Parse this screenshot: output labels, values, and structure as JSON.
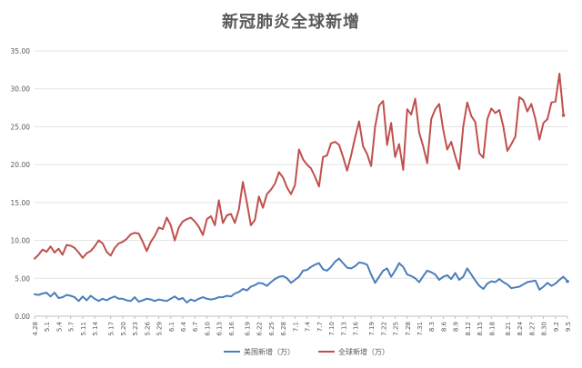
{
  "chart_data": {
    "type": "line",
    "title": "新冠肺炎全球新增",
    "xlabel": "",
    "ylabel": "",
    "ylim": [
      0,
      35
    ],
    "y_ticks": [
      "0.00",
      "5.00",
      "10.00",
      "15.00",
      "20.00",
      "25.00",
      "30.00",
      "35.00"
    ],
    "y_tick_values": [
      0,
      5,
      10,
      15,
      20,
      25,
      30,
      35
    ],
    "grid": true,
    "legend_position": "bottom",
    "x_tick_labels": [
      "4.28",
      "5.1",
      "5.4",
      "5.7",
      "5.11",
      "5.14",
      "5.17",
      "5.20",
      "5.23",
      "5.26",
      "5.29",
      "6.1",
      "6.4",
      "6.7",
      "6.10",
      "6.13",
      "6.16",
      "6.19",
      "6.22",
      "6.25",
      "6.28",
      "7.1",
      "7.4",
      "7.7",
      "7.10",
      "7.13",
      "7.16",
      "7.19",
      "7.22",
      "7.25",
      "7.28",
      "7.31",
      "8.3",
      "8.6",
      "8.9",
      "8.12",
      "8.15",
      "8.18",
      "8.21",
      "8.24",
      "8.27",
      "8.30",
      "9.2",
      "9.5"
    ],
    "series": [
      {
        "name": "美国新增（万）",
        "color": "#4A7EBB",
        "values": [
          2.9,
          2.8,
          3.0,
          3.1,
          2.6,
          3.1,
          2.4,
          2.5,
          2.8,
          2.7,
          2.5,
          2.0,
          2.6,
          2.1,
          2.7,
          2.3,
          2.0,
          2.3,
          2.1,
          2.4,
          2.6,
          2.3,
          2.3,
          2.1,
          2.0,
          2.5,
          1.9,
          2.1,
          2.3,
          2.2,
          2.0,
          2.2,
          2.1,
          2.0,
          2.3,
          2.6,
          2.2,
          2.4,
          1.8,
          2.2,
          2.0,
          2.3,
          2.5,
          2.3,
          2.2,
          2.3,
          2.5,
          2.5,
          2.7,
          2.6,
          3.0,
          3.2,
          3.6,
          3.4,
          3.9,
          4.1,
          4.4,
          4.3,
          4.0,
          4.5,
          4.9,
          5.2,
          5.3,
          5.0,
          4.4,
          4.8,
          5.2,
          6.0,
          6.1,
          6.5,
          6.8,
          7.0,
          6.2,
          6.0,
          6.5,
          7.2,
          7.6,
          7.0,
          6.4,
          6.3,
          6.6,
          7.1,
          7.0,
          6.8,
          5.5,
          4.4,
          5.2,
          6.0,
          6.3,
          5.2,
          6.0,
          7.0,
          6.5,
          5.5,
          5.3,
          5.0,
          4.5,
          5.3,
          6.0,
          5.8,
          5.5,
          4.8,
          5.2,
          5.4,
          4.9,
          5.7,
          4.8,
          5.2,
          6.3,
          5.5,
          4.7,
          4.0,
          3.6,
          4.3,
          4.6,
          4.5,
          4.9,
          4.5,
          4.2,
          3.7,
          3.8,
          3.9,
          4.2,
          4.5,
          4.6,
          4.7,
          3.5,
          3.9,
          4.4,
          4.0,
          4.3,
          4.8,
          5.2,
          4.6
        ],
        "end_marker": true
      },
      {
        "name": "全球新增（万）",
        "color": "#C0504D",
        "values": [
          7.6,
          8.1,
          8.8,
          8.5,
          9.2,
          8.4,
          8.9,
          8.1,
          9.4,
          9.3,
          9.0,
          8.4,
          7.7,
          8.3,
          8.6,
          9.2,
          10.0,
          9.6,
          8.5,
          8.0,
          9.0,
          9.6,
          9.8,
          10.2,
          10.8,
          11.0,
          10.9,
          9.8,
          8.6,
          9.8,
          10.6,
          11.7,
          11.5,
          13.0,
          12.0,
          10.0,
          11.7,
          12.5,
          12.8,
          13.0,
          12.5,
          11.8,
          10.7,
          12.8,
          13.2,
          12.0,
          15.3,
          12.3,
          13.3,
          13.5,
          12.3,
          14.1,
          17.7,
          15.0,
          12.0,
          12.7,
          15.8,
          14.3,
          16.1,
          16.7,
          17.5,
          19.0,
          18.3,
          17.0,
          16.1,
          17.3,
          22.0,
          20.7,
          20.0,
          19.5,
          18.4,
          17.1,
          21.0,
          21.2,
          22.8,
          23.0,
          22.6,
          21.0,
          19.2,
          21.2,
          23.6,
          25.7,
          22.4,
          21.4,
          19.8,
          25.0,
          27.8,
          28.4,
          22.6,
          25.5,
          21.0,
          22.7,
          19.3,
          27.3,
          26.6,
          28.7,
          24.2,
          22.4,
          20.2,
          26.0,
          27.3,
          28.0,
          24.6,
          22.0,
          23.0,
          21.1,
          19.4,
          25.0,
          28.2,
          26.4,
          25.6,
          21.5,
          20.9,
          26.0,
          27.4,
          26.8,
          27.2,
          25.0,
          21.8,
          22.7,
          23.7,
          28.9,
          28.5,
          27.0,
          28.0,
          26.0,
          23.3,
          25.5,
          26.0,
          28.2,
          28.3,
          32.0,
          26.5
        ],
        "end_marker": true
      }
    ]
  }
}
